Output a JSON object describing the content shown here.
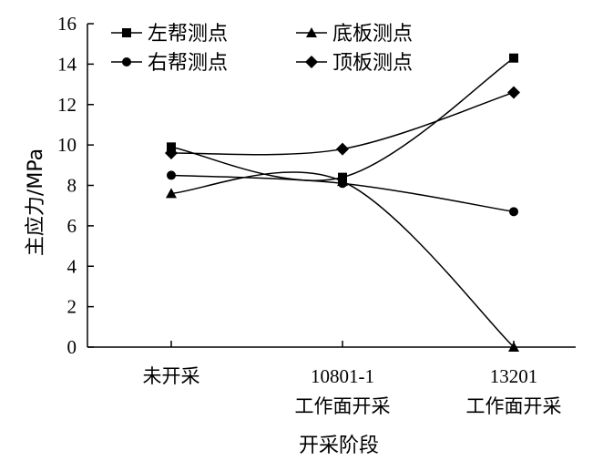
{
  "chart_data": {
    "type": "line",
    "xlabel": "开采阶段",
    "ylabel": "主应力/MPa",
    "ylim": [
      0,
      16
    ],
    "yticks": [
      "0",
      "2",
      "4",
      "6",
      "8",
      "10",
      "12",
      "14",
      "16"
    ],
    "categories": [
      [
        "未开采"
      ],
      [
        "10801-1",
        "工作面开采"
      ],
      [
        "13201",
        "工作面开采"
      ]
    ],
    "grid": false,
    "legend_position": "top",
    "series": [
      {
        "name": "左帮测点",
        "marker": "square",
        "values": [
          9.9,
          8.4,
          14.3
        ]
      },
      {
        "name": "右帮测点",
        "marker": "circle",
        "values": [
          8.5,
          8.1,
          6.7
        ]
      },
      {
        "name": "底板测点",
        "marker": "triangle",
        "values": [
          7.6,
          8.2,
          0.0
        ]
      },
      {
        "name": "顶板测点",
        "marker": "diamond",
        "values": [
          9.6,
          9.8,
          12.6
        ]
      }
    ]
  }
}
